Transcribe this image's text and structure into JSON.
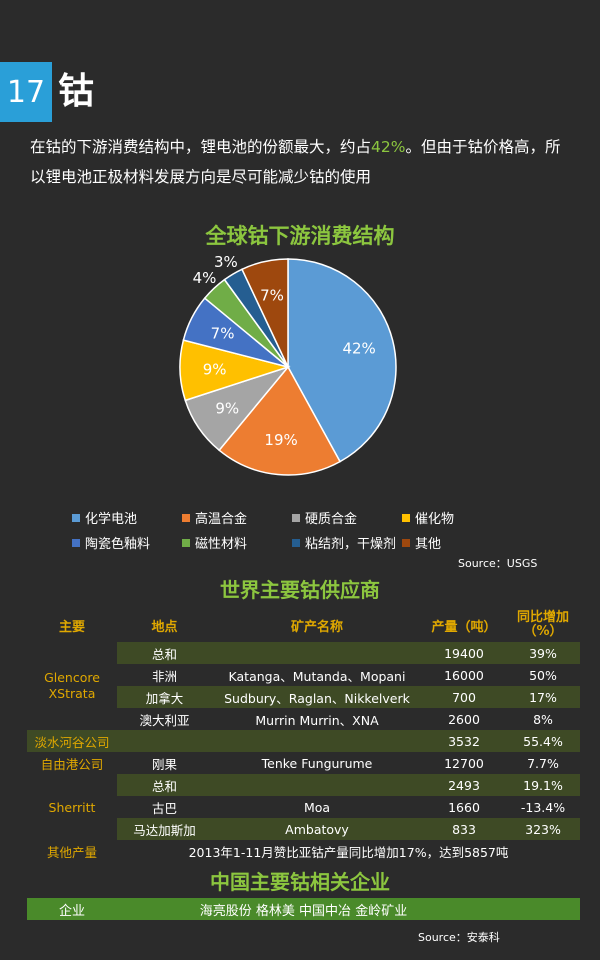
{
  "header": {
    "page_number": "17",
    "title": "钴"
  },
  "intro": {
    "part1": "在钴的下游消费结构中，锂电池的份额最大，约占",
    "highlight": "42%",
    "part2": "。但由于钴价格高，所以锂电池正极材料发展方向是尽可能减少钴的使用"
  },
  "chart_data": {
    "type": "pie",
    "title": "全球钴下游消费结构",
    "slices": [
      {
        "name": "化学电池",
        "value": 42,
        "label": "42%",
        "color": "#5b9bd5"
      },
      {
        "name": "高温合金",
        "value": 19,
        "label": "19%",
        "color": "#ed7d31"
      },
      {
        "name": "硬质合金",
        "value": 9,
        "label": "9%",
        "color": "#a5a5a5"
      },
      {
        "name": "催化物",
        "value": 9,
        "label": "9%",
        "color": "#ffc000"
      },
      {
        "name": "陶瓷色釉料",
        "value": 7,
        "label": "7%",
        "color": "#4472c4"
      },
      {
        "name": "磁性材料",
        "value": 4,
        "label": "4%",
        "color": "#70ad47"
      },
      {
        "name": "粘结剂，干燥剂",
        "value": 3,
        "label": "3%",
        "color": "#255e91"
      },
      {
        "name": "其他",
        "value": 7,
        "label": "7%",
        "color": "#9e480e"
      }
    ],
    "source": "Source：USGS"
  },
  "supply": {
    "title": "世界主要钴供应商",
    "headers": [
      "主要",
      "地点",
      "矿产名称",
      "产量（吨）",
      "同比增加（%）"
    ],
    "rows": [
      {
        "company": "",
        "place": "总和",
        "mine": "",
        "output": "19400",
        "yoy": "39%"
      },
      {
        "company": "",
        "place": "非洲",
        "mine": "Katanga、Mutanda、Mopani",
        "output": "16000",
        "yoy": "50%"
      },
      {
        "company": "",
        "place": "加拿大",
        "mine": "Sudbury、Raglan、Nikkelverk",
        "output": "700",
        "yoy": "17%"
      },
      {
        "company": "",
        "place": "澳大利亚",
        "mine": "Murrin Murrin、XNA",
        "output": "2600",
        "yoy": "8%"
      },
      {
        "company": "淡水河谷公司",
        "place": "",
        "mine": "",
        "output": "3532",
        "yoy": "55.4%"
      },
      {
        "company": "自由港公司",
        "place": "刚果",
        "mine": "Tenke Fungurume",
        "output": "12700",
        "yoy": "7.7%"
      },
      {
        "company": "",
        "place": "总和",
        "mine": "",
        "output": "2493",
        "yoy": "19.1%"
      },
      {
        "company": "",
        "place": "古巴",
        "mine": "Moa",
        "output": "1660",
        "yoy": "-13.4%"
      },
      {
        "company": "",
        "place": "马达加斯加",
        "mine": "Ambatovy",
        "output": "833",
        "yoy": "323%"
      }
    ],
    "glencore_line1": "Glencore",
    "glencore_line2": "XStrata",
    "sherritt": "Sherritt",
    "other_label": "其他产量",
    "other_text": "2013年1-11月赞比亚钴产量同比增加17%，达到5857吨"
  },
  "china": {
    "title": "中国主要钴相关企业",
    "label": "企业",
    "companies": "海亮股份 格林美 中国中冶 金岭矿业",
    "source": "Source：安泰科"
  }
}
